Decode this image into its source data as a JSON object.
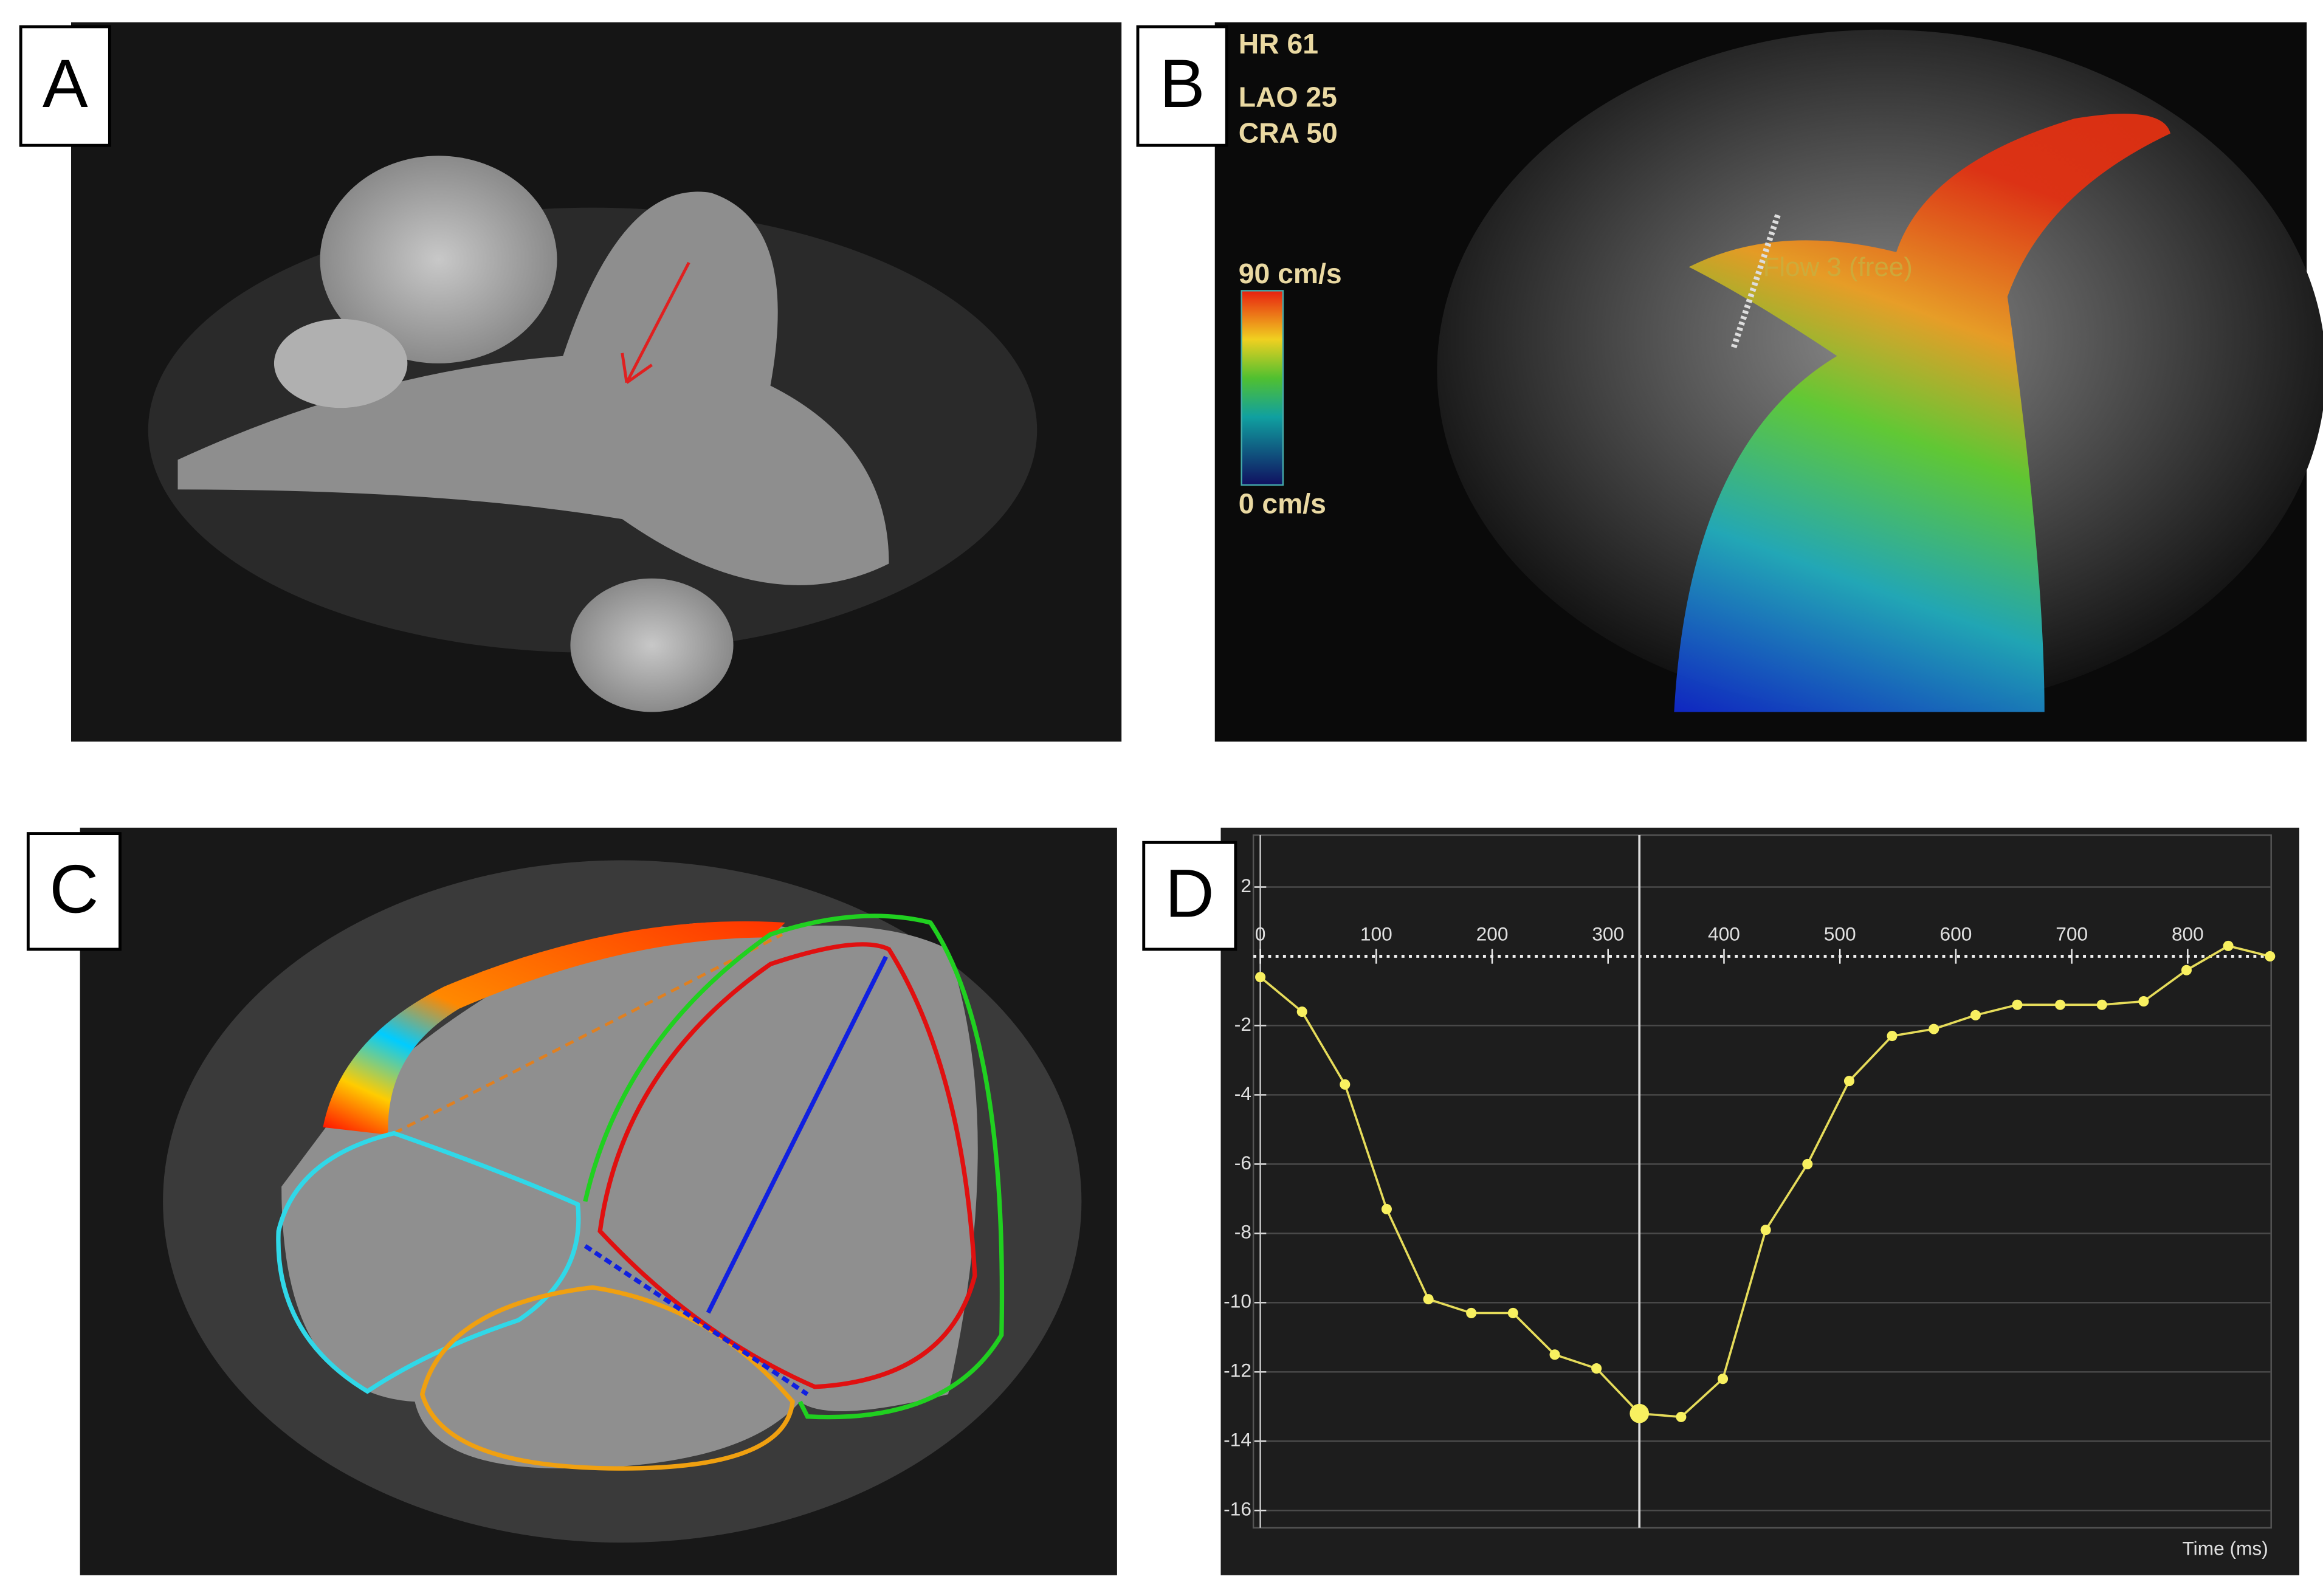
{
  "panels": [
    {
      "label": "A"
    },
    {
      "label": "B"
    },
    {
      "label": "C"
    },
    {
      "label": "D"
    }
  ],
  "panel_b": {
    "heart_rate": "HR 61",
    "lao": "LAO 25",
    "cra": "CRA 50",
    "scale_max": "90 cm/s",
    "scale_min": "0 cm/s",
    "plane_label": "Flow 3 (free)"
  },
  "chart_data": {
    "type": "line",
    "xlabel": "Time (ms)",
    "x": [
      0,
      36,
      73,
      109,
      145,
      182,
      218,
      254,
      290,
      327,
      363,
      399,
      436,
      472,
      508,
      545,
      581,
      617,
      653,
      690,
      726,
      762,
      799,
      835,
      871
    ],
    "values": [
      -0.6,
      -1.6,
      -3.7,
      -7.3,
      -9.9,
      -10.3,
      -10.3,
      -11.5,
      -11.9,
      -13.2,
      -13.3,
      -12.2,
      -7.9,
      -6.0,
      -3.6,
      -2.3,
      -2.1,
      -1.7,
      -1.4,
      -1.4,
      -1.4,
      -1.3,
      -0.4,
      0.3,
      0.0
    ],
    "color": "#e6dc5a",
    "cursor_index": 9,
    "xlim": [
      -6,
      872
    ],
    "ylim": [
      -16.5,
      3.5
    ],
    "xticks": [
      0,
      100,
      200,
      300,
      400,
      500,
      600,
      700,
      800
    ],
    "yticks": [
      2,
      -2,
      -4,
      -6,
      -8,
      -10,
      -12,
      -14,
      -16
    ],
    "grid": true
  }
}
